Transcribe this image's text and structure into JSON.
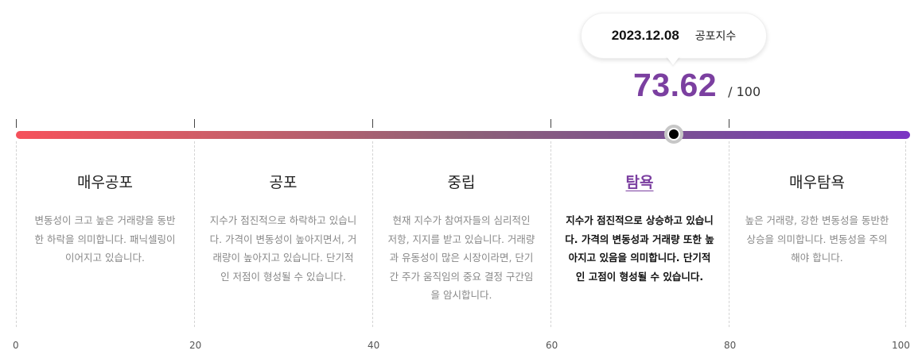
{
  "tooltip": {
    "date": "2023.12.08",
    "label": "공포지수"
  },
  "score": {
    "value": "73.62",
    "max_label": "/ 100",
    "value_numeric": 73.62,
    "max_numeric": 100
  },
  "colors": {
    "accent": "#7b3fa0",
    "gradient_start": "#f5515b",
    "gradient_end": "#7b35c4"
  },
  "zones": [
    {
      "title": "매우공포",
      "description": "변동성이 크고 높은 거래량을 동반한 하락을 의미합니다. 패닉셀링이 이어지고 있습니다.",
      "active": false
    },
    {
      "title": "공포",
      "description": "지수가 점진적으로 하락하고 있습니다. 가격이 변동성이 높아지면서, 거래량이 높아지고 있습니다. 단기적인 저점이 형성될 수 있습니다.",
      "active": false
    },
    {
      "title": "중립",
      "description": "현재 지수가 참여자들의 심리적인 저항, 지지를 받고 있습니다. 거래량과 유동성이 많은 시장이라면, 단기간 주가 움직임의 중요 결정 구간임을 암시합니다.",
      "active": false
    },
    {
      "title": "탐욕",
      "description": "지수가 점진적으로 상승하고 있습니다. 가격의 변동성과 거래량 또한 높아지고 있음을 의미합니다. 단기적인 고점이 형성될 수 있습니다.",
      "active": true
    },
    {
      "title": "매우탐욕",
      "description": "높은 거래량, 강한 변동성을 동반한 상승을 의미합니다. 변동성을 주의해야 합니다.",
      "active": false
    }
  ],
  "axis": {
    "ticks": [
      "0",
      "20",
      "40",
      "60",
      "80",
      "100"
    ]
  }
}
